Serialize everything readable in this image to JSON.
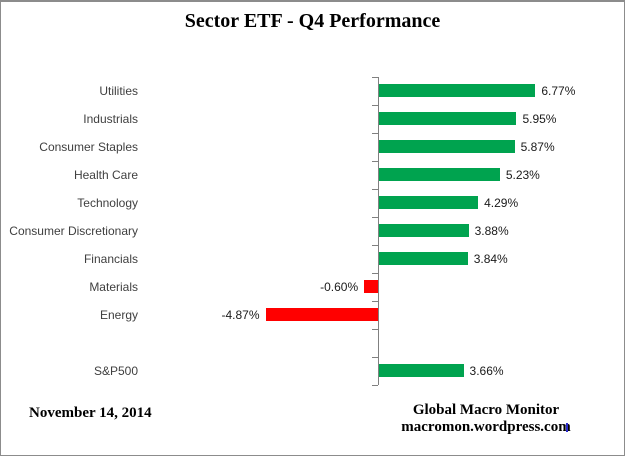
{
  "header": {
    "title": "Sector ETF - Q4 Performance"
  },
  "chart_data": {
    "type": "bar",
    "orientation": "horizontal",
    "title": "Sector ETF - Q4 Performance",
    "categories": [
      "Utilities",
      "Industrials",
      "Consumer Staples",
      "Health Care",
      "Technology",
      "Consumer Discretionary",
      "Financials",
      "Materials",
      "Energy",
      "",
      "S&P500"
    ],
    "values": [
      6.77,
      5.95,
      5.87,
      5.23,
      4.29,
      3.88,
      3.84,
      -0.6,
      -4.87,
      null,
      3.66
    ],
    "value_labels": [
      "6.77%",
      "5.95%",
      "5.87%",
      "5.23%",
      "4.29%",
      "3.88%",
      "3.84%",
      "-0.60%",
      "-4.87%",
      "",
      "3.66%"
    ],
    "xlabel": "",
    "ylabel": "",
    "xlim_percent": [
      -5.5,
      7.5
    ],
    "grid": false,
    "legend": "none",
    "colors": {
      "positive": "#00A34F",
      "negative": "#FF0000",
      "axis": "#808080"
    }
  },
  "footer": {
    "date": "November 14, 2014",
    "credit_line_1": "Global Macro Monitor",
    "credit_line_2": "macromon.wordpress.com"
  }
}
